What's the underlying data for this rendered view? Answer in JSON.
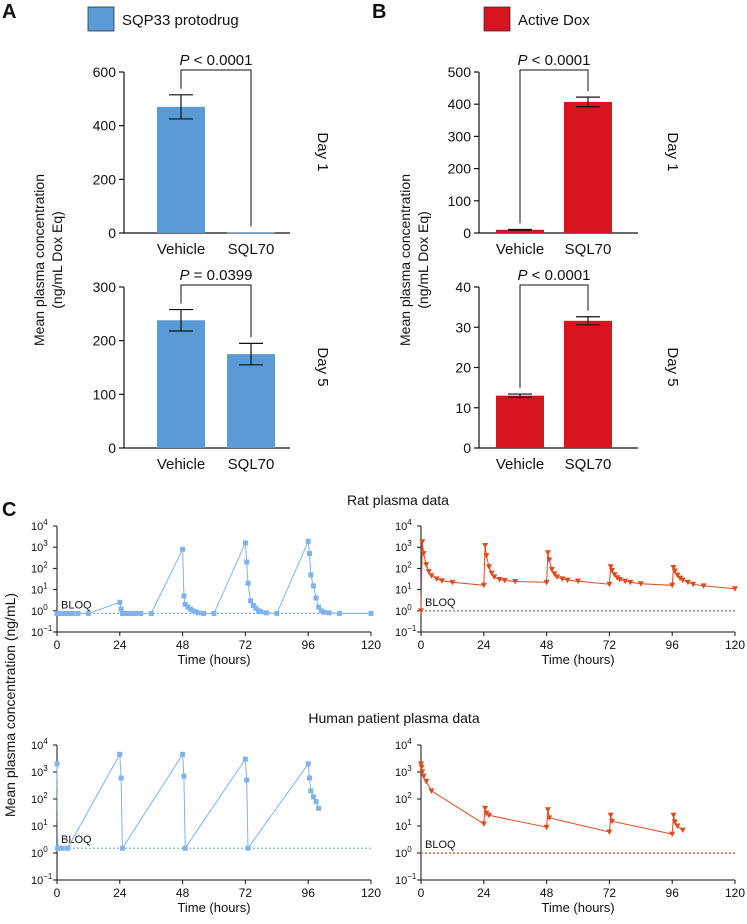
{
  "panels": {
    "a": "A",
    "b": "B",
    "c": "C"
  },
  "legend": {
    "sqp": {
      "label": "SQP33 protodrug",
      "color": "#5b9bd5"
    },
    "dox": {
      "label": "Active Dox",
      "color": "#d7141f"
    }
  },
  "labels": {
    "ylab_top_line1": "Mean plasma concentration",
    "ylab_top_line2": "(ng/mL Dox Eq)",
    "ylab_bottom": "Mean plasma concentration (ng/mL)",
    "rat_title": "Rat plasma data",
    "human_title": "Human patient plasma data",
    "bloq": "BLOQ",
    "xlabel": "Time (hours)"
  },
  "chart_data": [
    {
      "id": "a1",
      "type": "bar",
      "title": "SQP33 protodrug",
      "day": "Day 1",
      "categories": [
        "Vehicle",
        "SQL70"
      ],
      "values": [
        470,
        2
      ],
      "errors": [
        45,
        0
      ],
      "ylim": [
        0,
        600
      ],
      "yticks": [
        0,
        200,
        400,
        600
      ],
      "pvalue": "P < 0.0001",
      "color": "#5b9bd5"
    },
    {
      "id": "a5",
      "type": "bar",
      "title": "SQP33 protodrug",
      "day": "Day 5",
      "categories": [
        "Vehicle",
        "SQL70"
      ],
      "values": [
        238,
        175
      ],
      "errors": [
        20,
        20
      ],
      "ylim": [
        0,
        300
      ],
      "yticks": [
        0,
        100,
        200,
        300
      ],
      "pvalue": "P = 0.0399",
      "color": "#5b9bd5"
    },
    {
      "id": "b1",
      "type": "bar",
      "title": "Active Dox",
      "day": "Day 1",
      "categories": [
        "Vehicle",
        "SQL70"
      ],
      "values": [
        10,
        407
      ],
      "errors": [
        1,
        15
      ],
      "ylim": [
        0,
        500
      ],
      "yticks": [
        0,
        100,
        200,
        300,
        400,
        500
      ],
      "pvalue": "P < 0.0001",
      "color": "#d7141f"
    },
    {
      "id": "b5",
      "type": "bar",
      "title": "Active Dox",
      "day": "Day 5",
      "categories": [
        "Vehicle",
        "SQL70"
      ],
      "values": [
        13,
        31.6
      ],
      "errors": [
        0.4,
        1
      ],
      "ylim": [
        0,
        40
      ],
      "yticks": [
        0,
        10,
        20,
        30,
        40
      ],
      "pvalue": "P < 0.0001",
      "color": "#d7141f"
    },
    {
      "id": "ratL",
      "type": "line",
      "title": "Rat plasma data",
      "series_name": "SQP33 protodrug",
      "marker": "square",
      "color": "#7fb3ee",
      "xlim": [
        0,
        120
      ],
      "xticks": [
        0,
        24,
        48,
        72,
        96,
        120
      ],
      "ylog": [
        -1,
        4
      ],
      "bloq": 0.75,
      "x": [
        0,
        0.5,
        1,
        2,
        3,
        4,
        5,
        6,
        8,
        12,
        24,
        24.5,
        25,
        25.5,
        26,
        27,
        28,
        29,
        30,
        32,
        36,
        48,
        48.5,
        49,
        50,
        51,
        52,
        53,
        54,
        56,
        60,
        72,
        72.5,
        73,
        74,
        75,
        76,
        77,
        78,
        80,
        84,
        96,
        96.5,
        97,
        98,
        99,
        100,
        101,
        102,
        104,
        108,
        120
      ],
      "y": [
        0.75,
        0.75,
        0.75,
        0.75,
        0.75,
        0.75,
        0.75,
        0.75,
        0.75,
        0.75,
        2.5,
        1.2,
        0.75,
        0.75,
        0.75,
        0.75,
        0.75,
        0.75,
        0.75,
        0.75,
        0.75,
        800,
        5,
        2,
        1.5,
        1.2,
        1,
        0.9,
        0.8,
        0.75,
        0.75,
        1600,
        200,
        20,
        3,
        1.8,
        1.3,
        1,
        0.9,
        0.8,
        0.75,
        1900,
        500,
        50,
        15,
        4,
        1.5,
        1,
        0.85,
        0.8,
        0.75,
        0.75
      ]
    },
    {
      "id": "ratR",
      "type": "line",
      "title": "Rat plasma data",
      "series_name": "Active Dox",
      "marker": "triangle-down",
      "color": "#dd4b1f",
      "xlim": [
        0,
        120
      ],
      "xticks": [
        0,
        24,
        48,
        72,
        96,
        120
      ],
      "ylog": [
        -1,
        4
      ],
      "bloq": 1.0,
      "x": [
        0,
        0.5,
        1,
        2,
        3,
        4,
        6,
        8,
        12,
        24,
        24.5,
        25,
        26,
        27,
        28,
        30,
        32,
        36,
        48,
        48.5,
        49,
        50,
        51,
        52,
        54,
        56,
        60,
        72,
        72.5,
        73,
        74,
        75,
        76,
        78,
        80,
        84,
        96,
        96.5,
        97,
        98,
        99,
        100,
        102,
        104,
        108,
        120
      ],
      "y": [
        1,
        1800,
        500,
        150,
        70,
        45,
        32,
        26,
        22,
        16,
        1200,
        400,
        120,
        60,
        40,
        30,
        27,
        24,
        22,
        550,
        250,
        90,
        55,
        40,
        32,
        28,
        25,
        18,
        120,
        80,
        50,
        36,
        30,
        25,
        22,
        19,
        16,
        110,
        75,
        48,
        35,
        28,
        22,
        18,
        15,
        11
      ]
    },
    {
      "id": "humL",
      "type": "line",
      "title": "Human patient plasma data",
      "series_name": "SQP33 protodrug",
      "marker": "square",
      "color": "#7fb3ee",
      "xlim": [
        0,
        120
      ],
      "xticks": [
        0,
        24,
        48,
        72,
        96,
        120
      ],
      "ylog": [
        -1,
        4
      ],
      "bloq": 1.5,
      "x": [
        0,
        0.25,
        0.5,
        1,
        2,
        4,
        24,
        24.5,
        25,
        48,
        48.5,
        49,
        72,
        72.5,
        73,
        96,
        96.5,
        97,
        98,
        99,
        100
      ],
      "y": [
        2000,
        1.5,
        1.5,
        1.5,
        1.5,
        1.5,
        4500,
        600,
        1.5,
        4500,
        700,
        1.5,
        3000,
        500,
        1.5,
        2000,
        600,
        200,
        120,
        80,
        45
      ]
    },
    {
      "id": "humR",
      "type": "line",
      "title": "Human patient plasma data",
      "series_name": "Active Dox",
      "marker": "triangle-down",
      "color": "#dd4b1f",
      "xlim": [
        0,
        120
      ],
      "xticks": [
        0,
        24,
        48,
        72,
        96,
        120
      ],
      "ylog": [
        -1,
        4
      ],
      "bloq": 1.0,
      "x": [
        0,
        0.25,
        0.5,
        1,
        2,
        4,
        24,
        24.5,
        25,
        26,
        48,
        48.5,
        49,
        72,
        72.5,
        73,
        96,
        96.5,
        97,
        98,
        100
      ],
      "y": [
        2000,
        1500,
        1000,
        700,
        450,
        200,
        12,
        45,
        30,
        25,
        9,
        40,
        20,
        6,
        25,
        15,
        5,
        25,
        14,
        10,
        7
      ]
    }
  ]
}
